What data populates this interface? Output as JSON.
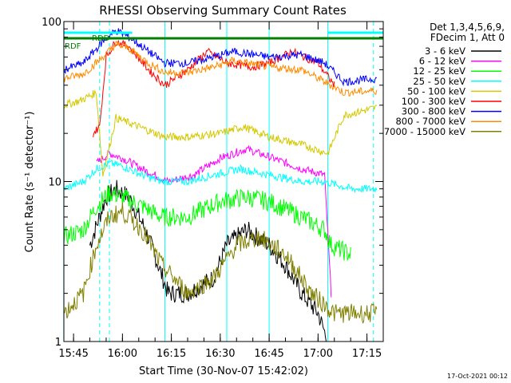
{
  "chart_data": {
    "type": "line",
    "title": "RHESSI Observing Summary Count Rates",
    "xlabel": "Start Time (30-Nov-07 15:42:02)",
    "ylabel": "Count Rate (s⁻¹ detector⁻¹)",
    "yscale": "log",
    "ylim": [
      1,
      100
    ],
    "y_ticks": [
      "1",
      "10",
      "100"
    ],
    "xlim_minutes": [
      "15:42:02",
      "17:20:00"
    ],
    "x_ticks": [
      "15:45",
      "16:00",
      "16:15",
      "16:30",
      "16:45",
      "17:00",
      "17:15"
    ],
    "legend_header": [
      "Det 1,3,4,5,6,9,",
      "FDecim 1, Att 0"
    ],
    "footer": "17-Oct-2021 00:12",
    "annotations": [
      "RDD",
      "RDF"
    ],
    "state_bars": [
      {
        "label": "RDD",
        "color": "#00ffff",
        "segments": [
          [
            "15:42",
            "16:03"
          ],
          [
            "17:03",
            "17:20"
          ]
        ]
      },
      {
        "label": "RDF",
        "color": "#007f00",
        "segments": [
          [
            "15:42",
            "17:20"
          ]
        ]
      }
    ],
    "vertical_lines": [
      {
        "time": "15:42",
        "color": "#00ffff",
        "style": "solid"
      },
      {
        "time": "15:53",
        "color": "#00ffff",
        "style": "dashed"
      },
      {
        "time": "15:56",
        "color": "#00ffff",
        "style": "dashed"
      },
      {
        "time": "16:13",
        "color": "#00ffff",
        "style": "solid"
      },
      {
        "time": "16:32",
        "color": "#00ffff",
        "style": "solid"
      },
      {
        "time": "16:45",
        "color": "#00ffff",
        "style": "solid"
      },
      {
        "time": "17:03",
        "color": "#00ffff",
        "style": "solid"
      },
      {
        "time": "17:17",
        "color": "#00ffff",
        "style": "dashed"
      }
    ],
    "series": [
      {
        "name": "3 - 6 keV",
        "color": "#000000",
        "points": [
          [
            "15:50",
            4
          ],
          [
            "15:55",
            8
          ],
          [
            "15:58",
            9
          ],
          [
            "16:02",
            8
          ],
          [
            "16:07",
            5
          ],
          [
            "16:11",
            3
          ],
          [
            "16:14",
            2
          ],
          [
            "16:20",
            2
          ],
          [
            "16:28",
            2.5
          ],
          [
            "16:32",
            4
          ],
          [
            "16:38",
            5
          ],
          [
            "16:45",
            4
          ],
          [
            "16:50",
            3
          ],
          [
            "16:55",
            2
          ],
          [
            "17:00",
            1.5
          ],
          [
            "17:03",
            1
          ]
        ]
      },
      {
        "name": "6 - 12 keV",
        "color": "#ff00ff",
        "points": [
          [
            "15:52",
            13
          ],
          [
            "15:56",
            15
          ],
          [
            "16:00",
            14
          ],
          [
            "16:06",
            12
          ],
          [
            "16:14",
            10
          ],
          [
            "16:22",
            11
          ],
          [
            "16:30",
            14
          ],
          [
            "16:38",
            16
          ],
          [
            "16:46",
            14
          ],
          [
            "16:55",
            12
          ],
          [
            "17:02",
            11
          ],
          [
            "17:04",
            2
          ]
        ]
      },
      {
        "name": "12 - 25 keV",
        "color": "#00ff00",
        "points": [
          [
            "15:42",
            4.5
          ],
          [
            "15:48",
            5
          ],
          [
            "15:52",
            7
          ],
          [
            "15:56",
            8.5
          ],
          [
            "16:00",
            8
          ],
          [
            "16:06",
            7
          ],
          [
            "16:12",
            6
          ],
          [
            "16:20",
            6
          ],
          [
            "16:30",
            7.5
          ],
          [
            "16:38",
            8
          ],
          [
            "16:45",
            7.5
          ],
          [
            "16:55",
            6
          ],
          [
            "17:02",
            5
          ],
          [
            "17:04",
            4
          ],
          [
            "17:10",
            3.5
          ]
        ]
      },
      {
        "name": "25 - 50 keV",
        "color": "#00ffff",
        "points": [
          [
            "15:42",
            9
          ],
          [
            "15:48",
            10
          ],
          [
            "15:52",
            12
          ],
          [
            "15:56",
            13
          ],
          [
            "16:00",
            12.5
          ],
          [
            "16:06",
            11
          ],
          [
            "16:12",
            10
          ],
          [
            "16:20",
            10
          ],
          [
            "16:28",
            11
          ],
          [
            "16:36",
            12
          ],
          [
            "16:45",
            11
          ],
          [
            "16:55",
            10
          ],
          [
            "17:02",
            10
          ],
          [
            "17:10",
            9
          ],
          [
            "17:18",
            9
          ]
        ]
      },
      {
        "name": "50 - 100 keV",
        "color": "#d4c800",
        "points": [
          [
            "15:42",
            30
          ],
          [
            "15:47",
            32
          ],
          [
            "15:52",
            36
          ],
          [
            "15:54",
            11
          ],
          [
            "15:58",
            25
          ],
          [
            "16:05",
            22
          ],
          [
            "16:13",
            19
          ],
          [
            "16:20",
            19
          ],
          [
            "16:30",
            20
          ],
          [
            "16:37",
            22
          ],
          [
            "16:45",
            19
          ],
          [
            "16:55",
            17
          ],
          [
            "17:03",
            15
          ],
          [
            "17:08",
            26
          ],
          [
            "17:18",
            29
          ]
        ]
      },
      {
        "name": "100 - 300 keV",
        "color": "#ff0000",
        "points": [
          [
            "15:51",
            20
          ],
          [
            "15:53",
            22
          ],
          [
            "15:55",
            60
          ],
          [
            "15:58",
            75
          ],
          [
            "16:02",
            70
          ],
          [
            "16:08",
            50
          ],
          [
            "16:13",
            40
          ],
          [
            "16:20",
            50
          ],
          [
            "16:26",
            65
          ],
          [
            "16:32",
            55
          ],
          [
            "16:40",
            52
          ],
          [
            "16:45",
            55
          ],
          [
            "16:52",
            65
          ],
          [
            "17:00",
            55
          ],
          [
            "17:05",
            40
          ]
        ]
      },
      {
        "name": "300 - 800 keV",
        "color": "#0000ff",
        "points": [
          [
            "15:42",
            50
          ],
          [
            "15:48",
            55
          ],
          [
            "15:54",
            75
          ],
          [
            "15:58",
            88
          ],
          [
            "16:02",
            80
          ],
          [
            "16:08",
            65
          ],
          [
            "16:13",
            55
          ],
          [
            "16:20",
            55
          ],
          [
            "16:28",
            60
          ],
          [
            "16:34",
            65
          ],
          [
            "16:45",
            60
          ],
          [
            "16:55",
            62
          ],
          [
            "17:02",
            55
          ],
          [
            "17:08",
            42
          ],
          [
            "17:18",
            44
          ]
        ]
      },
      {
        "name": "800 - 7000 keV",
        "color": "#ff8c00",
        "points": [
          [
            "15:42",
            44
          ],
          [
            "15:48",
            47
          ],
          [
            "15:54",
            60
          ],
          [
            "15:58",
            72
          ],
          [
            "16:02",
            68
          ],
          [
            "16:08",
            55
          ],
          [
            "16:13",
            48
          ],
          [
            "16:20",
            48
          ],
          [
            "16:28",
            52
          ],
          [
            "16:34",
            57
          ],
          [
            "16:45",
            52
          ],
          [
            "16:55",
            50
          ],
          [
            "17:02",
            42
          ],
          [
            "17:08",
            36
          ],
          [
            "17:18",
            37
          ]
        ]
      },
      {
        "name": "7000 - 15000 keV",
        "color": "#808000",
        "points": [
          [
            "15:42",
            1.5
          ],
          [
            "15:48",
            2
          ],
          [
            "15:52",
            4
          ],
          [
            "15:56",
            6
          ],
          [
            "16:00",
            6.5
          ],
          [
            "16:06",
            5
          ],
          [
            "16:12",
            3
          ],
          [
            "16:20",
            2
          ],
          [
            "16:28",
            2.5
          ],
          [
            "16:35",
            4
          ],
          [
            "16:42",
            4.5
          ],
          [
            "16:50",
            3.5
          ],
          [
            "16:58",
            2
          ],
          [
            "17:05",
            1.5
          ],
          [
            "17:18",
            1.5
          ]
        ]
      }
    ]
  }
}
